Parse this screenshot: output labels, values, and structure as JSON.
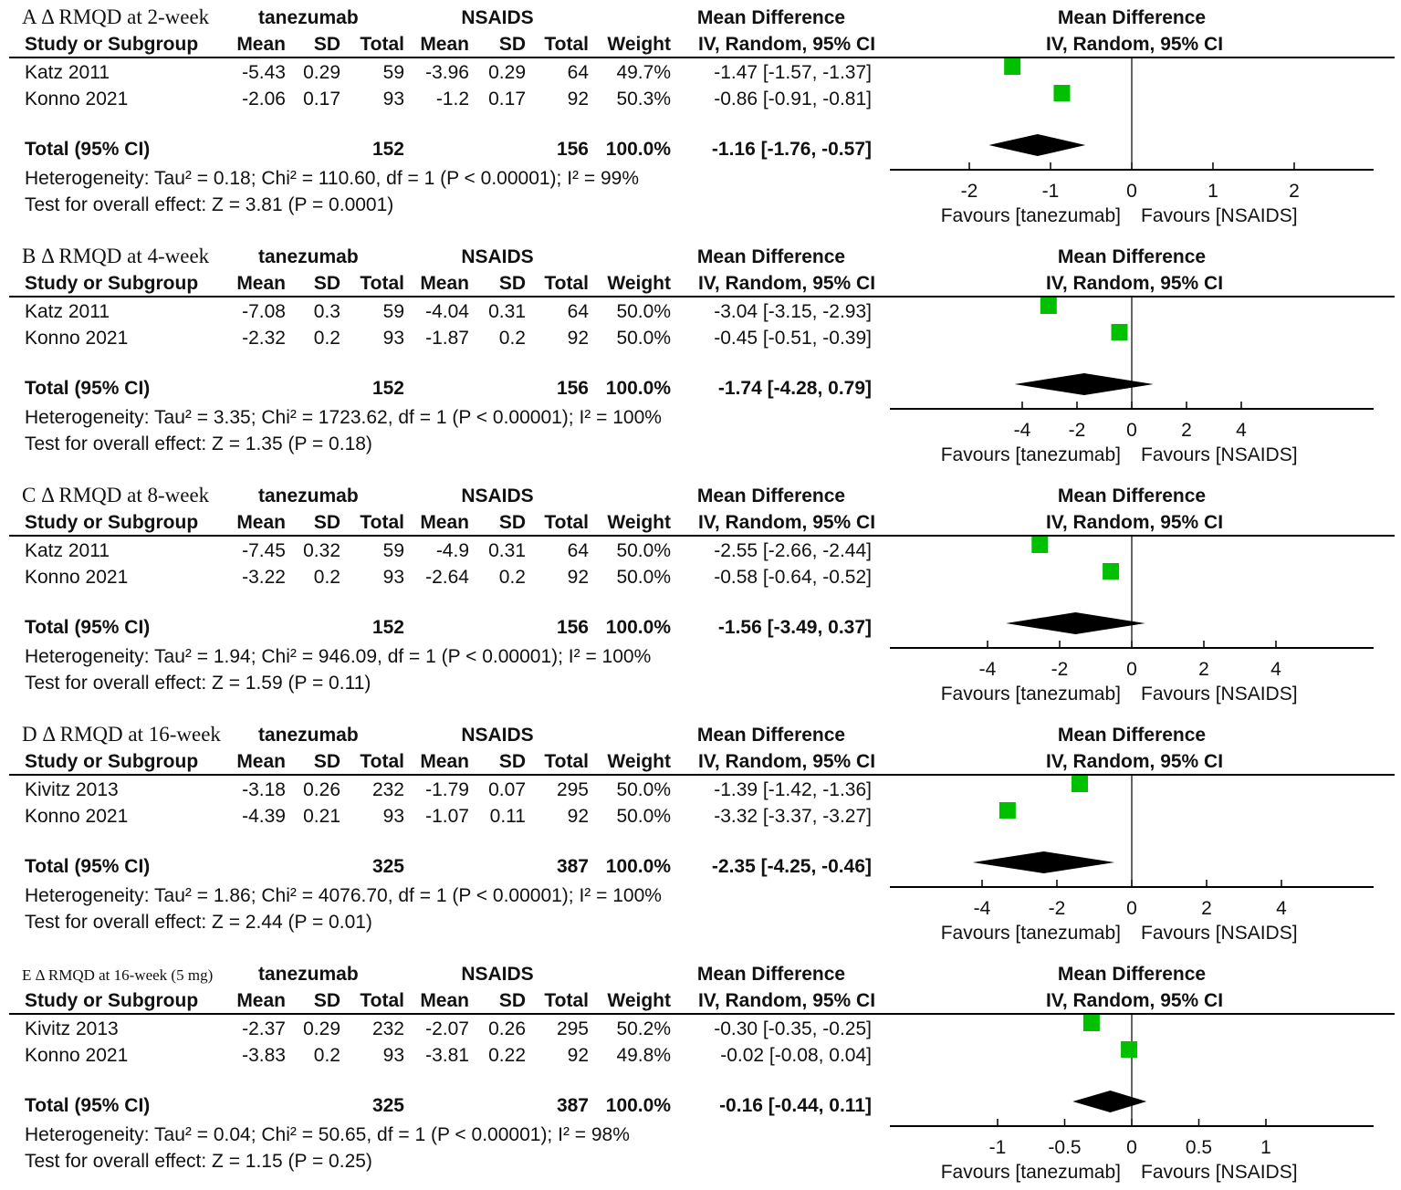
{
  "colors": {
    "square": "#00c000",
    "diamond": "#000000",
    "line": "#000000"
  },
  "headers": {
    "group1": "tanezumab",
    "group2": "NSAIDS",
    "md": "Mean Difference",
    "md_plot": "Mean Difference",
    "study": "Study or Subgroup",
    "mean1": "Mean",
    "sd1": "SD",
    "total1": "Total",
    "mean2": "Mean",
    "sd2": "SD",
    "total2": "Total",
    "weight": "Weight",
    "ci": "IV, Random, 95% CI",
    "ci_plot": "IV, Random, 95% CI",
    "favours_left": "Favours [tanezumab]",
    "favours_right": "Favours [NSAIDS]",
    "total_label": "Total (95% CI)"
  },
  "chart_data": [
    {
      "type": "forest",
      "title": "A Δ RMQD at 2-week",
      "xlim": [
        -2,
        2
      ],
      "ticks": [
        "-2",
        "-1",
        "0",
        "1",
        "2"
      ],
      "tick_values": [
        -2,
        -1,
        0,
        1,
        2
      ],
      "studies": [
        {
          "name": "Katz 2011",
          "mean1": "-5.43",
          "sd1": "0.29",
          "n1": "59",
          "mean2": "-3.96",
          "sd2": "0.29",
          "n2": "64",
          "weight": "49.7%",
          "ci_text": "-1.47 [-1.57, -1.37]",
          "md": -1.47
        },
        {
          "name": "Konno 2021",
          "mean1": "-2.06",
          "sd1": "0.17",
          "n1": "93",
          "mean2": "-1.2",
          "sd2": "0.17",
          "n2": "92",
          "weight": "50.3%",
          "ci_text": "-0.86 [-0.91, -0.81]",
          "md": -0.86
        }
      ],
      "total": {
        "n1": "152",
        "n2": "156",
        "weight": "100.0%",
        "ci_text": "-1.16 [-1.76, -0.57]",
        "md": -1.16,
        "lo": -1.76,
        "hi": -0.57
      },
      "heterogeneity": "Heterogeneity: Tau² = 0.18; Chi² = 110.60, df = 1 (P < 0.00001); I² = 99%",
      "overall": "Test for overall effect: Z = 3.81 (P = 0.0001)"
    },
    {
      "type": "forest",
      "title": "B Δ RMQD at 4-week",
      "xlim": [
        -4,
        4
      ],
      "ticks": [
        "-4",
        "-2",
        "0",
        "2",
        "4"
      ],
      "tick_values": [
        -4,
        -2,
        0,
        2,
        4
      ],
      "studies": [
        {
          "name": "Katz 2011",
          "mean1": "-7.08",
          "sd1": "0.3",
          "n1": "59",
          "mean2": "-4.04",
          "sd2": "0.31",
          "n2": "64",
          "weight": "50.0%",
          "ci_text": "-3.04 [-3.15, -2.93]",
          "md": -3.04
        },
        {
          "name": "Konno 2021",
          "mean1": "-2.32",
          "sd1": "0.2",
          "n1": "93",
          "mean2": "-1.87",
          "sd2": "0.2",
          "n2": "92",
          "weight": "50.0%",
          "ci_text": "-0.45 [-0.51, -0.39]",
          "md": -0.45
        }
      ],
      "total": {
        "n1": "152",
        "n2": "156",
        "weight": "100.0%",
        "ci_text": "-1.74 [-4.28, 0.79]",
        "md": -1.74,
        "lo": -4.28,
        "hi": 0.79
      },
      "heterogeneity": "Heterogeneity: Tau² = 3.35; Chi² = 1723.62, df = 1 (P < 0.00001); I² = 100%",
      "overall": "Test for overall effect: Z = 1.35 (P = 0.18)"
    },
    {
      "type": "forest",
      "title": "C Δ RMQD at 8-week",
      "xlim": [
        -4,
        4
      ],
      "ticks": [
        "-4",
        "-2",
        "0",
        "2",
        "4"
      ],
      "tick_values": [
        -4,
        -2,
        0,
        2,
        4
      ],
      "studies": [
        {
          "name": "Katz 2011",
          "mean1": "-7.45",
          "sd1": "0.32",
          "n1": "59",
          "mean2": "-4.9",
          "sd2": "0.31",
          "n2": "64",
          "weight": "50.0%",
          "ci_text": "-2.55 [-2.66, -2.44]",
          "md": -2.55
        },
        {
          "name": "Konno 2021",
          "mean1": "-3.22",
          "sd1": "0.2",
          "n1": "93",
          "mean2": "-2.64",
          "sd2": "0.2",
          "n2": "92",
          "weight": "50.0%",
          "ci_text": "-0.58 [-0.64, -0.52]",
          "md": -0.58
        }
      ],
      "total": {
        "n1": "152",
        "n2": "156",
        "weight": "100.0%",
        "ci_text": "-1.56 [-3.49, 0.37]",
        "md": -1.56,
        "lo": -3.49,
        "hi": 0.37
      },
      "heterogeneity": "Heterogeneity: Tau² = 1.94; Chi² = 946.09, df = 1 (P < 0.00001); I² = 100%",
      "overall": "Test for overall effect: Z = 1.59 (P = 0.11)"
    },
    {
      "type": "forest",
      "title": "D Δ RMQD at 16-week",
      "xlim": [
        -4,
        4
      ],
      "ticks": [
        "-4",
        "-2",
        "0",
        "2",
        "4"
      ],
      "tick_values": [
        -4,
        -2,
        0,
        2,
        4
      ],
      "studies": [
        {
          "name": "Kivitz 2013",
          "mean1": "-3.18",
          "sd1": "0.26",
          "n1": "232",
          "mean2": "-1.79",
          "sd2": "0.07",
          "n2": "295",
          "weight": "50.0%",
          "ci_text": "-1.39 [-1.42, -1.36]",
          "md": -1.39
        },
        {
          "name": "Konno 2021",
          "mean1": "-4.39",
          "sd1": "0.21",
          "n1": "93",
          "mean2": "-1.07",
          "sd2": "0.11",
          "n2": "92",
          "weight": "50.0%",
          "ci_text": "-3.32 [-3.37, -3.27]",
          "md": -3.32
        }
      ],
      "total": {
        "n1": "325",
        "n2": "387",
        "weight": "100.0%",
        "ci_text": "-2.35 [-4.25, -0.46]",
        "md": -2.35,
        "lo": -4.25,
        "hi": -0.46
      },
      "heterogeneity": "Heterogeneity: Tau² = 1.86; Chi² = 4076.70, df = 1 (P < 0.00001); I² = 100%",
      "overall": "Test for overall effect: Z = 2.44 (P = 0.01)"
    },
    {
      "type": "forest",
      "title": "E Δ RMQD at 16-week (5 mg)",
      "xlim": [
        -1,
        1
      ],
      "ticks": [
        "-1",
        "-0.5",
        "0",
        "0.5",
        "1"
      ],
      "tick_values": [
        -1,
        -0.5,
        0,
        0.5,
        1
      ],
      "studies": [
        {
          "name": "Kivitz 2013",
          "mean1": "-2.37",
          "sd1": "0.29",
          "n1": "232",
          "mean2": "-2.07",
          "sd2": "0.26",
          "n2": "295",
          "weight": "50.2%",
          "ci_text": "-0.30 [-0.35, -0.25]",
          "md": -0.3
        },
        {
          "name": "Konno 2021",
          "mean1": "-3.83",
          "sd1": "0.2",
          "n1": "93",
          "mean2": "-3.81",
          "sd2": "0.22",
          "n2": "92",
          "weight": "49.8%",
          "ci_text": "-0.02 [-0.08, 0.04]",
          "md": -0.02
        }
      ],
      "total": {
        "n1": "325",
        "n2": "387",
        "weight": "100.0%",
        "ci_text": "-0.16 [-0.44, 0.11]",
        "md": -0.16,
        "lo": -0.44,
        "hi": 0.11
      },
      "heterogeneity": "Heterogeneity: Tau² = 0.04; Chi² = 50.65, df = 1 (P < 0.00001); I² = 98%",
      "overall": "Test for overall effect: Z = 1.15 (P = 0.25)"
    }
  ]
}
